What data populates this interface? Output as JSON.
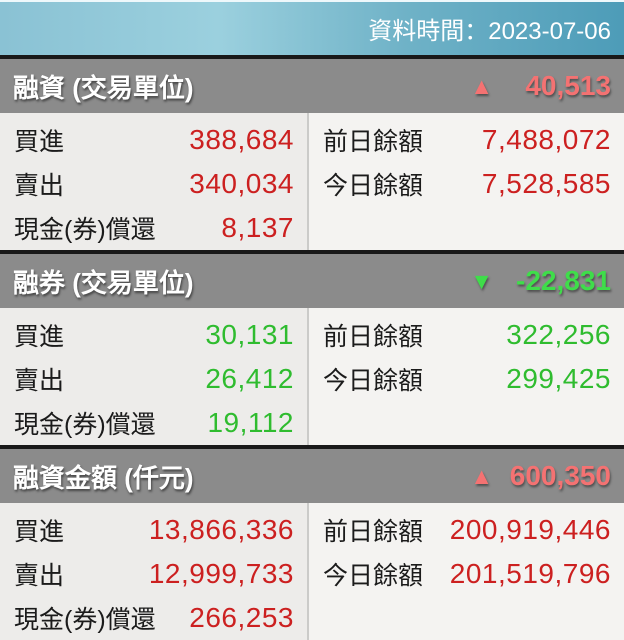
{
  "top_bar": {
    "label": "資料時間：2023-07-06"
  },
  "icons": {
    "up_triangle": "▲",
    "down_triangle": "▼"
  },
  "colors": {
    "topbar_gradient_left": "#8ac2d4",
    "topbar_gradient_right": "#4d9cb8",
    "section_header_bg": "#8b8b8b",
    "separator": "#191919",
    "up_value_red": "#cc2020",
    "down_value_green": "#2fbc2f",
    "header_up_red": "#f47272",
    "header_down_green": "#3fdd4a"
  },
  "sections": [
    {
      "title": "融資 (交易單位)",
      "direction": "up",
      "change": "40,513",
      "left_rows": [
        {
          "label": "買進",
          "value": "388,684"
        },
        {
          "label": "賣出",
          "value": "340,034"
        },
        {
          "label": "現金(券)償還",
          "value": "8,137"
        }
      ],
      "right_rows": [
        {
          "label": "前日餘額",
          "value": "7,488,072"
        },
        {
          "label": "今日餘額",
          "value": "7,528,585"
        }
      ]
    },
    {
      "title": "融券 (交易單位)",
      "direction": "down",
      "change": "-22,831",
      "left_rows": [
        {
          "label": "買進",
          "value": "30,131"
        },
        {
          "label": "賣出",
          "value": "26,412"
        },
        {
          "label": "現金(券)償還",
          "value": "19,112"
        }
      ],
      "right_rows": [
        {
          "label": "前日餘額",
          "value": "322,256"
        },
        {
          "label": "今日餘額",
          "value": "299,425"
        }
      ]
    },
    {
      "title": "融資金額 (仟元)",
      "direction": "up",
      "change": "600,350",
      "left_rows": [
        {
          "label": "買進",
          "value": "13,866,336"
        },
        {
          "label": "賣出",
          "value": "12,999,733"
        },
        {
          "label": "現金(券)償還",
          "value": "266,253"
        }
      ],
      "right_rows": [
        {
          "label": "前日餘額",
          "value": "200,919,446"
        },
        {
          "label": "今日餘額",
          "value": "201,519,796"
        }
      ]
    }
  ]
}
